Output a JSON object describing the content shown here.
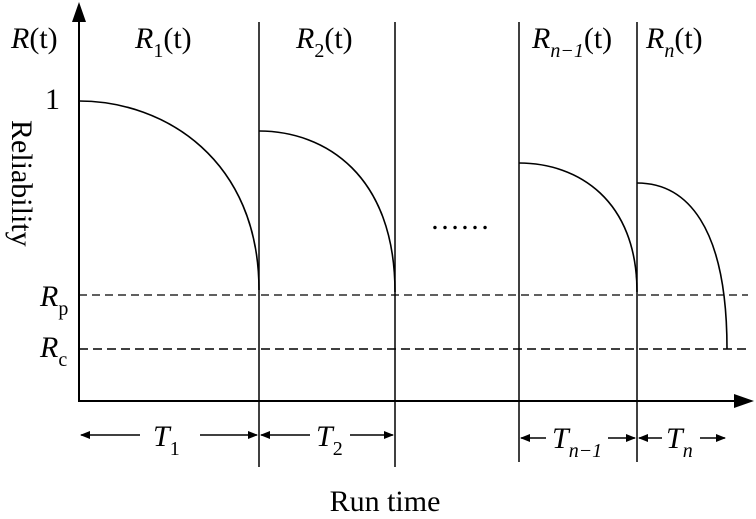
{
  "axes": {
    "y_label": "Reliability",
    "y_symbol": {
      "base": "R",
      "arg": "(t)"
    },
    "x_label": "Run time",
    "y_tick_one": "1"
  },
  "thresholds": [
    {
      "base": "R",
      "sub": "p",
      "style": "dash-dot"
    },
    {
      "base": "R",
      "sub": "c",
      "style": "dashed"
    }
  ],
  "stages": [
    {
      "base": "R",
      "sub": "1",
      "arg": "(t)",
      "period_base": "T",
      "period_sub": "1"
    },
    {
      "base": "R",
      "sub": "2",
      "arg": "(t)",
      "period_base": "T",
      "period_sub": "2"
    },
    {
      "base": "R",
      "sub": "n−1",
      "arg": "(t)",
      "period_base": "T",
      "period_sub": "n−1"
    },
    {
      "base": "R",
      "sub": "n",
      "arg": "(t)",
      "period_base": "T",
      "period_sub": "n"
    }
  ],
  "ellipsis": "……"
}
